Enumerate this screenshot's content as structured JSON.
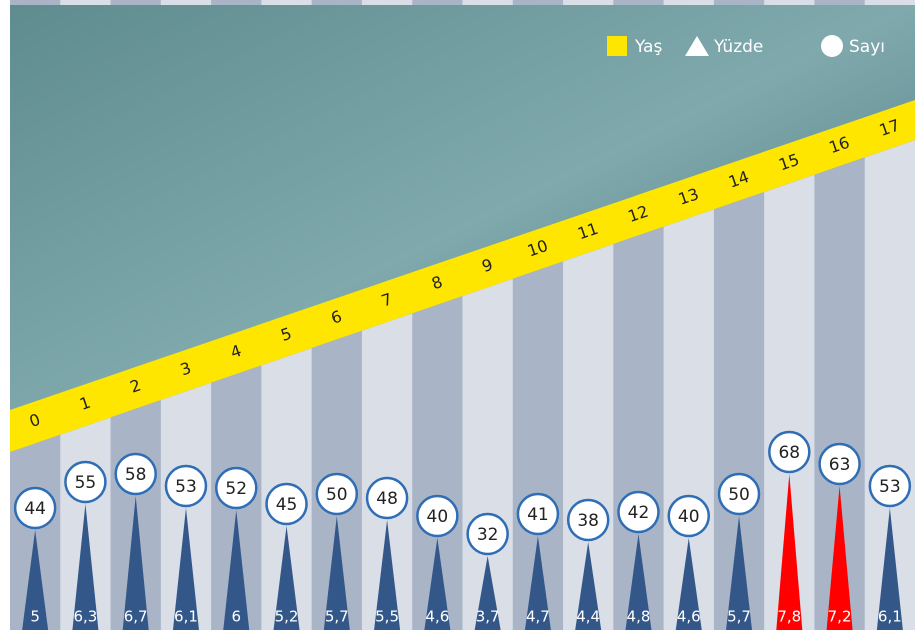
{
  "chart_data": {
    "type": "triangle",
    "category_label": "Yaş",
    "categories": [
      "0",
      "1",
      "2",
      "3",
      "4",
      "5",
      "6",
      "7",
      "8",
      "9",
      "10",
      "11",
      "12",
      "13",
      "14",
      "15",
      "16",
      "17"
    ],
    "series": [
      {
        "name": "Yüzde",
        "color": "#34578a",
        "colors": [
          "#34578a",
          "#34578a",
          "#34578a",
          "#34578a",
          "#34578a",
          "#34578a",
          "#34578a",
          "#34578a",
          "#34578a",
          "#34578a",
          "#34578a",
          "#34578a",
          "#34578a",
          "#34578a",
          "#34578a",
          "#ff0000",
          "#ff0000",
          "#34578a"
        ],
        "values": [
          5,
          6.3,
          6.7,
          6.1,
          6,
          5.2,
          5.7,
          5.5,
          4.6,
          3.7,
          4.7,
          4.4,
          4.8,
          4.6,
          5.7,
          7.8,
          7.2,
          6.1
        ],
        "value_labels": [
          "5",
          "6,3",
          "6,7",
          "6,1",
          "6",
          "5,2",
          "5,7",
          "5,5",
          "4,6",
          "3,7",
          "4,7",
          "4,4",
          "4,8",
          "4,6",
          "5,7",
          "7,8",
          "7,2",
          "6,1"
        ]
      },
      {
        "name": "Sayı",
        "color": "#ffffff",
        "values": [
          44,
          55,
          58,
          53,
          52,
          45,
          50,
          48,
          40,
          32,
          41,
          38,
          42,
          40,
          50,
          68,
          63,
          53
        ]
      }
    ]
  }
}
